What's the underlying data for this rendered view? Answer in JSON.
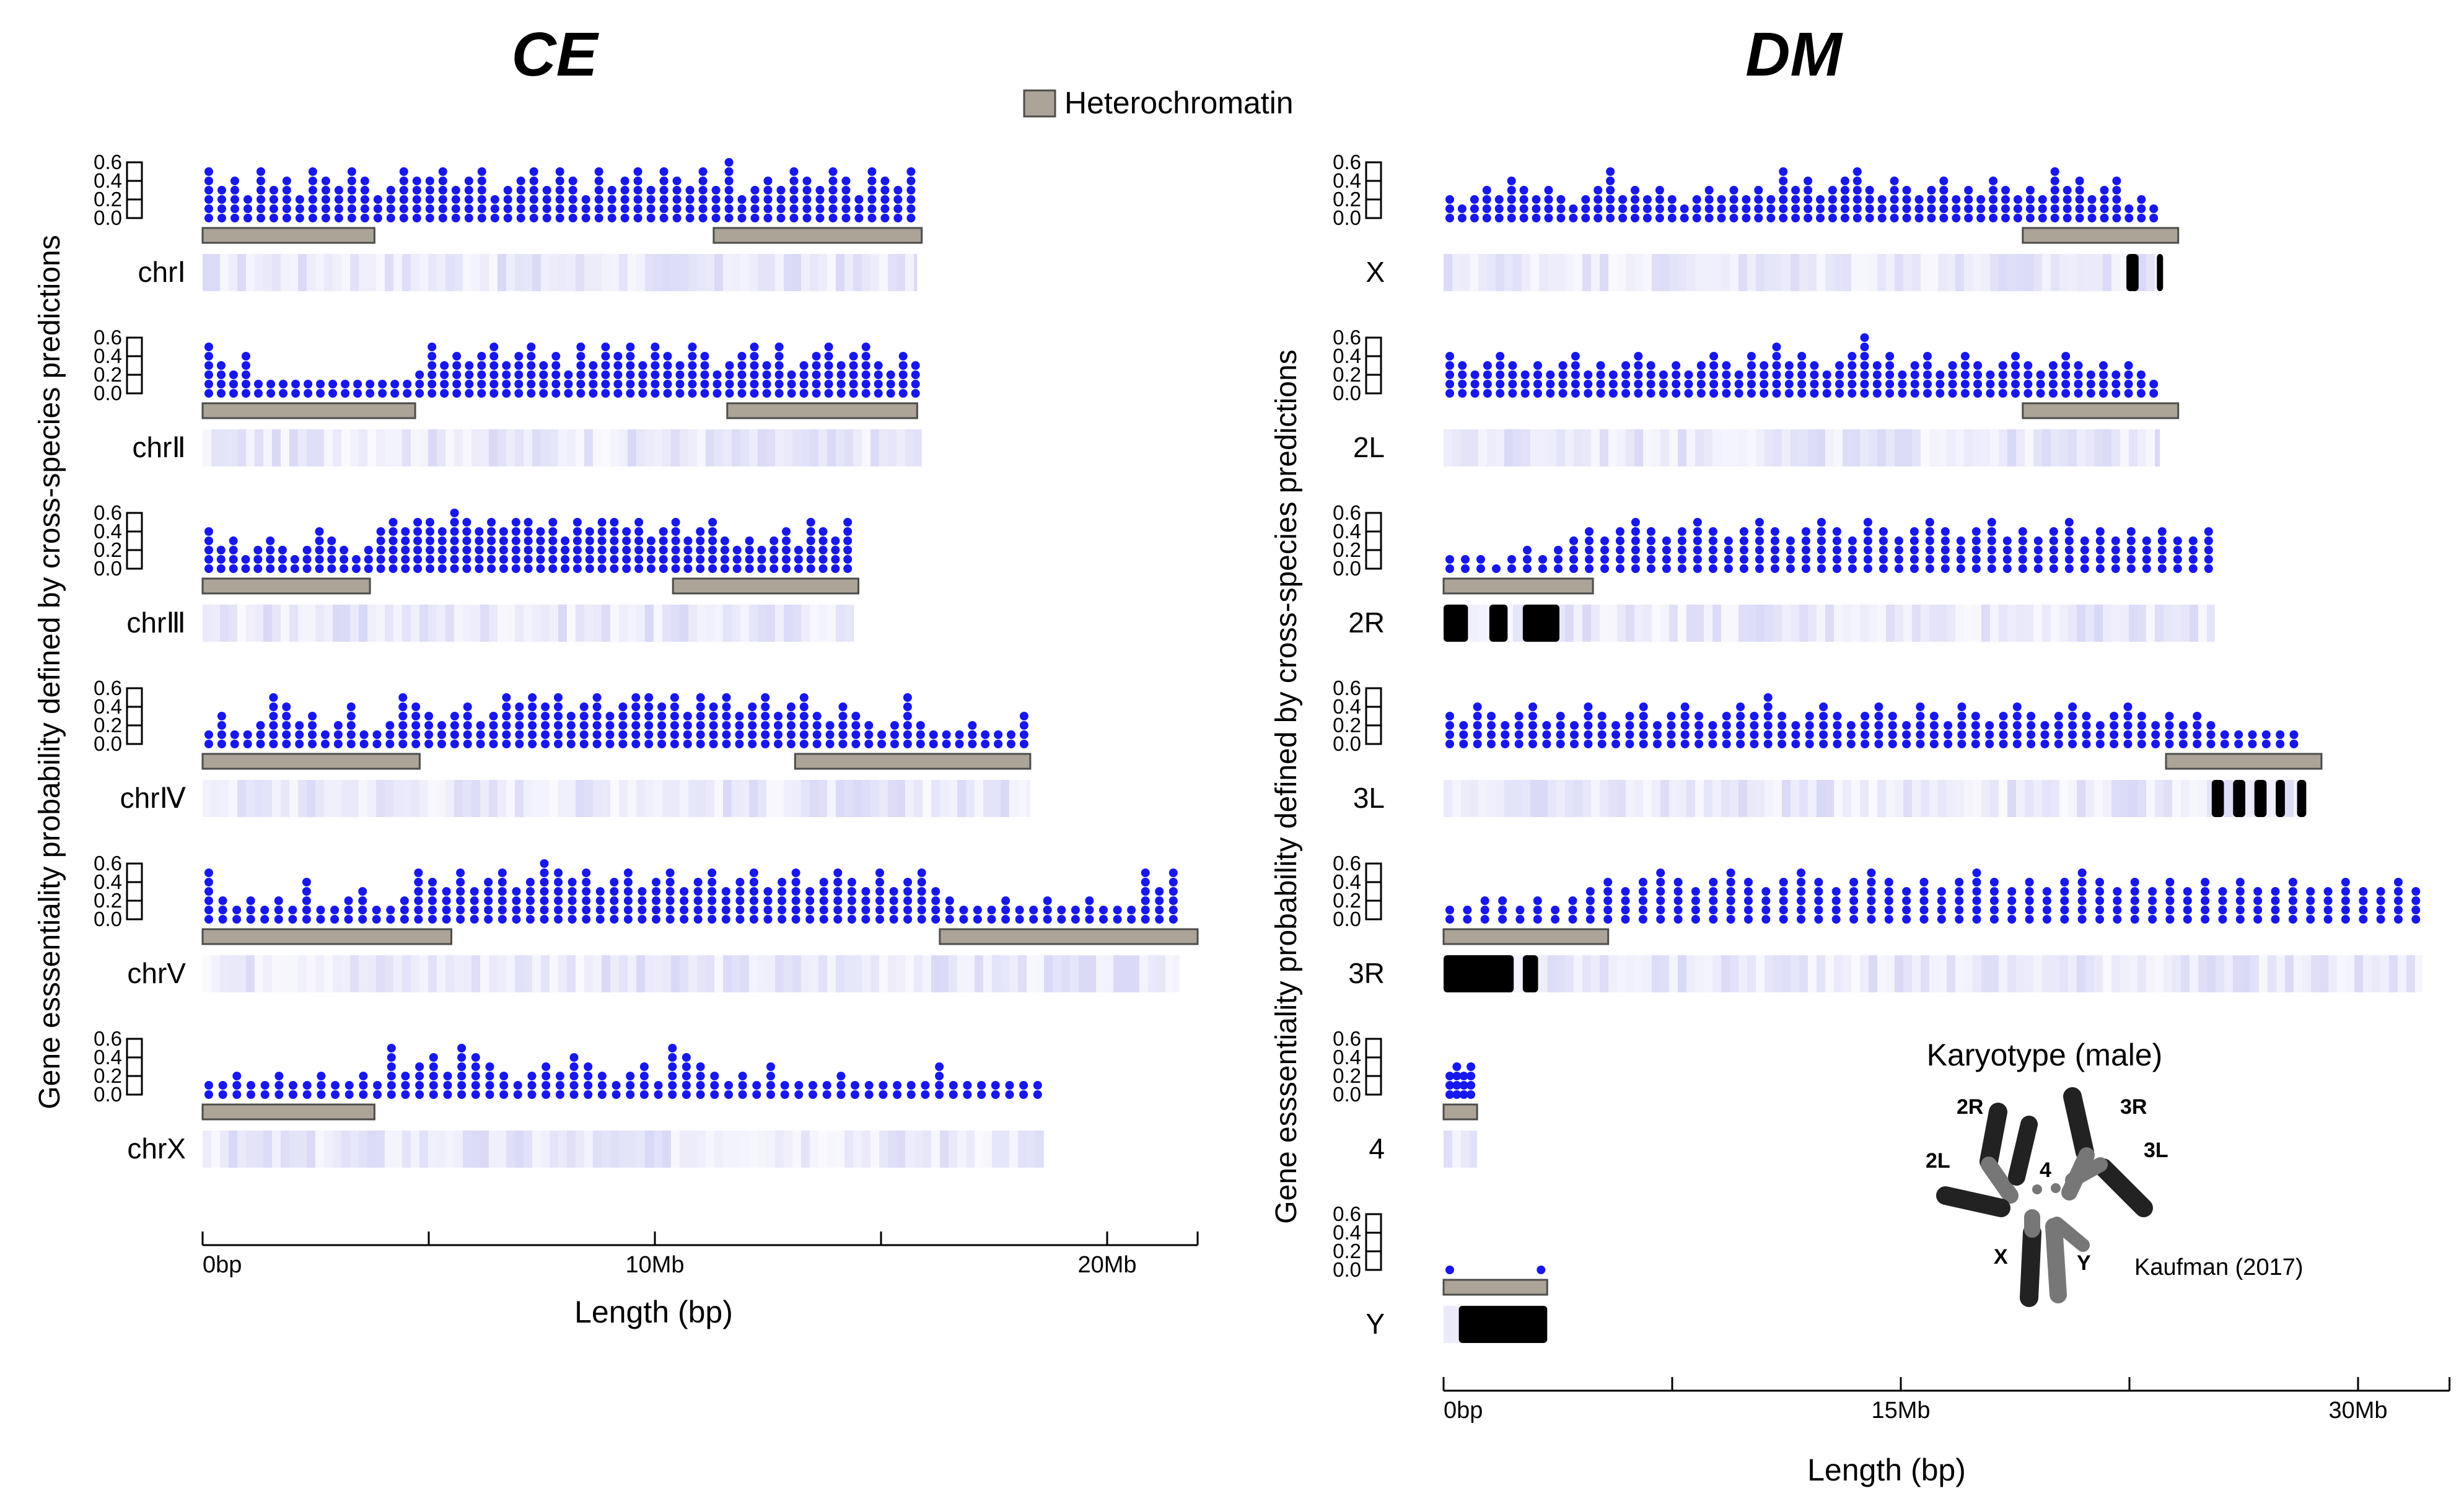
{
  "figure": {
    "panel_titles": {
      "left": "CE",
      "right": "DM"
    },
    "legend_label": "Heterochromatin",
    "colors": {
      "point": "#1717ee",
      "hetero_fill": "#aca497",
      "hetero_stroke": "#4d4d4d",
      "density": "#6a6ae0",
      "band": "#000000",
      "chrom": "#222222"
    },
    "karyotype": {
      "title": "Karyotype (male)",
      "labels": [
        "2R",
        "3R",
        "2L",
        "3L",
        "4",
        "X",
        "Y"
      ],
      "credit": "Kaufman (2017)"
    }
  },
  "chart_data": [
    {
      "type": "scatter",
      "title": "CE",
      "ylabel": "Gene esssentiality probability defined by cross-species predictions",
      "xlabel": "Length (bp)",
      "x_unit": "Mb",
      "xlim": [
        0,
        22
      ],
      "x_ticks": [
        0,
        10,
        20
      ],
      "x_tick_labels": [
        "0bp",
        "10Mb",
        "20Mb"
      ],
      "x_minor_ticks": [
        5,
        15
      ],
      "ylim": [
        0,
        0.6
      ],
      "y_ticks": [
        0.0,
        0.2,
        0.4,
        0.6
      ],
      "y_tick_labels": [
        "0.0",
        "0.2",
        "0.4",
        "0.6"
      ],
      "rows": [
        {
          "label": "chrⅠ",
          "length": 15.8,
          "heterochromatin": [
            [
              0,
              3.8
            ],
            [
              11.3,
              15.9
            ]
          ],
          "bands": [],
          "peaks": [
            0.5,
            0.3,
            0.4,
            0.2,
            0.5,
            0.3,
            0.4,
            0.2,
            0.5,
            0.4,
            0.3,
            0.5,
            0.4,
            0.2,
            0.3,
            0.5,
            0.4,
            0.4,
            0.5,
            0.3,
            0.4,
            0.5,
            0.2,
            0.3,
            0.4,
            0.5,
            0.3,
            0.5,
            0.4,
            0.2,
            0.5,
            0.3,
            0.4,
            0.5,
            0.3,
            0.5,
            0.4,
            0.3,
            0.5,
            0.3,
            0.6,
            0.2,
            0.3,
            0.4,
            0.3,
            0.5,
            0.4,
            0.3,
            0.5,
            0.4,
            0.2,
            0.5,
            0.4,
            0.3,
            0.5
          ]
        },
        {
          "label": "chrⅡ",
          "length": 15.9,
          "heterochromatin": [
            [
              0,
              4.7
            ],
            [
              11.6,
              15.8
            ]
          ],
          "bands": [],
          "peaks": [
            0.5,
            0.3,
            0.2,
            0.4,
            0.1,
            0.05,
            0.05,
            0.05,
            0.05,
            0.05,
            0.1,
            0.05,
            0.05,
            0.05,
            0.05,
            0.05,
            0.1,
            0.2,
            0.5,
            0.3,
            0.4,
            0.3,
            0.4,
            0.5,
            0.3,
            0.4,
            0.5,
            0.3,
            0.4,
            0.2,
            0.5,
            0.3,
            0.5,
            0.4,
            0.5,
            0.3,
            0.5,
            0.4,
            0.3,
            0.5,
            0.4,
            0.2,
            0.3,
            0.4,
            0.5,
            0.3,
            0.5,
            0.2,
            0.3,
            0.4,
            0.5,
            0.3,
            0.4,
            0.5,
            0.3,
            0.2,
            0.4,
            0.3
          ]
        },
        {
          "label": "chrⅢ",
          "length": 14.4,
          "heterochromatin": [
            [
              0,
              3.7
            ],
            [
              10.4,
              14.5
            ]
          ],
          "bands": [],
          "peaks": [
            0.4,
            0.2,
            0.3,
            0.1,
            0.2,
            0.3,
            0.2,
            0.1,
            0.2,
            0.4,
            0.3,
            0.2,
            0.1,
            0.2,
            0.4,
            0.5,
            0.4,
            0.5,
            0.5,
            0.4,
            0.6,
            0.5,
            0.4,
            0.5,
            0.4,
            0.5,
            0.5,
            0.4,
            0.5,
            0.3,
            0.5,
            0.4,
            0.5,
            0.5,
            0.4,
            0.5,
            0.3,
            0.4,
            0.5,
            0.3,
            0.4,
            0.5,
            0.3,
            0.2,
            0.3,
            0.2,
            0.3,
            0.4,
            0.2,
            0.5,
            0.4,
            0.3,
            0.5
          ]
        },
        {
          "label": "chrⅣ",
          "length": 18.3,
          "heterochromatin": [
            [
              0,
              4.8
            ],
            [
              13.1,
              18.3
            ]
          ],
          "bands": [],
          "peaks": [
            0.1,
            0.3,
            0.1,
            0.1,
            0.2,
            0.5,
            0.4,
            0.2,
            0.3,
            0.1,
            0.2,
            0.4,
            0.1,
            0.1,
            0.2,
            0.5,
            0.4,
            0.3,
            0.2,
            0.3,
            0.4,
            0.2,
            0.3,
            0.5,
            0.4,
            0.5,
            0.4,
            0.5,
            0.3,
            0.4,
            0.5,
            0.3,
            0.4,
            0.5,
            0.5,
            0.4,
            0.5,
            0.3,
            0.5,
            0.4,
            0.5,
            0.3,
            0.4,
            0.5,
            0.3,
            0.4,
            0.5,
            0.3,
            0.2,
            0.4,
            0.3,
            0.2,
            0.1,
            0.2,
            0.5,
            0.2,
            0.1,
            0.1,
            0.1,
            0.2,
            0.1,
            0.1,
            0.1,
            0.3
          ]
        },
        {
          "label": "chrV",
          "length": 21.6,
          "heterochromatin": [
            [
              0,
              5.5
            ],
            [
              16.3,
              22.0
            ]
          ],
          "bands": [],
          "peaks": [
            0.5,
            0.2,
            0.1,
            0.2,
            0.1,
            0.2,
            0.1,
            0.4,
            0.1,
            0.1,
            0.2,
            0.3,
            0.1,
            0.1,
            0.2,
            0.5,
            0.4,
            0.3,
            0.5,
            0.3,
            0.4,
            0.5,
            0.3,
            0.4,
            0.6,
            0.5,
            0.4,
            0.5,
            0.3,
            0.4,
            0.5,
            0.3,
            0.4,
            0.5,
            0.3,
            0.4,
            0.5,
            0.3,
            0.4,
            0.5,
            0.3,
            0.4,
            0.5,
            0.3,
            0.4,
            0.5,
            0.4,
            0.3,
            0.5,
            0.3,
            0.4,
            0.5,
            0.3,
            0.2,
            0.1,
            0.1,
            0.1,
            0.2,
            0.1,
            0.1,
            0.2,
            0.1,
            0.1,
            0.2,
            0.1,
            0.1,
            0.1,
            0.5,
            0.3,
            0.5
          ]
        },
        {
          "label": "chrX",
          "length": 18.6,
          "heterochromatin": [
            [
              0,
              3.8
            ]
          ],
          "bands": [],
          "peaks": [
            0.1,
            0.1,
            0.2,
            0.1,
            0.1,
            0.2,
            0.1,
            0.1,
            0.2,
            0.1,
            0.1,
            0.2,
            0.1,
            0.5,
            0.2,
            0.3,
            0.4,
            0.2,
            0.5,
            0.4,
            0.3,
            0.2,
            0.1,
            0.2,
            0.3,
            0.2,
            0.4,
            0.3,
            0.2,
            0.1,
            0.2,
            0.3,
            0.1,
            0.5,
            0.4,
            0.3,
            0.2,
            0.1,
            0.2,
            0.1,
            0.3,
            0.1,
            0.1,
            0.1,
            0.1,
            0.2,
            0.1,
            0.1,
            0.1,
            0.1,
            0.1,
            0.1,
            0.3,
            0.1,
            0.1,
            0.1,
            0.1,
            0.1,
            0.1,
            0.1
          ]
        }
      ]
    },
    {
      "type": "scatter",
      "title": "DM",
      "ylabel": "Gene esssentiality probability defined by cross-species predictions",
      "xlabel": "Length (bp)",
      "x_unit": "Mb",
      "xlim": [
        0,
        33
      ],
      "x_ticks": [
        0,
        15,
        30
      ],
      "x_tick_labels": [
        "0bp",
        "15Mb",
        "30Mb"
      ],
      "x_minor_ticks": [
        7.5,
        22.5
      ],
      "ylim": [
        0,
        0.6
      ],
      "y_ticks": [
        0.0,
        0.2,
        0.4,
        0.6
      ],
      "y_tick_labels": [
        "0.0",
        "0.2",
        "0.4",
        "0.6"
      ],
      "rows": [
        {
          "label": "X",
          "length": 23.5,
          "heterochromatin": [
            [
              19.0,
              24.1
            ]
          ],
          "bands": [
            [
              22.4,
              22.8
            ],
            [
              23.4,
              23.5
            ]
          ],
          "peaks": [
            0.2,
            0.1,
            0.2,
            0.3,
            0.2,
            0.4,
            0.3,
            0.2,
            0.3,
            0.2,
            0.1,
            0.2,
            0.3,
            0.5,
            0.2,
            0.3,
            0.2,
            0.3,
            0.2,
            0.1,
            0.2,
            0.3,
            0.2,
            0.3,
            0.2,
            0.3,
            0.2,
            0.5,
            0.3,
            0.4,
            0.2,
            0.3,
            0.4,
            0.5,
            0.3,
            0.2,
            0.4,
            0.3,
            0.2,
            0.3,
            0.4,
            0.2,
            0.3,
            0.2,
            0.4,
            0.3,
            0.2,
            0.3,
            0.2,
            0.5,
            0.3,
            0.4,
            0.2,
            0.3,
            0.4,
            0.1,
            0.2,
            0.1
          ]
        },
        {
          "label": "2L",
          "length": 23.5,
          "heterochromatin": [
            [
              19.0,
              24.1
            ]
          ],
          "bands": [],
          "peaks": [
            0.4,
            0.3,
            0.2,
            0.3,
            0.4,
            0.3,
            0.2,
            0.3,
            0.2,
            0.3,
            0.4,
            0.2,
            0.3,
            0.2,
            0.3,
            0.4,
            0.3,
            0.2,
            0.3,
            0.2,
            0.3,
            0.4,
            0.3,
            0.2,
            0.4,
            0.3,
            0.5,
            0.3,
            0.4,
            0.3,
            0.2,
            0.3,
            0.4,
            0.6,
            0.3,
            0.4,
            0.2,
            0.3,
            0.4,
            0.2,
            0.3,
            0.4,
            0.3,
            0.2,
            0.3,
            0.4,
            0.3,
            0.2,
            0.3,
            0.4,
            0.3,
            0.2,
            0.3,
            0.2,
            0.3,
            0.2,
            0.1
          ]
        },
        {
          "label": "2R",
          "length": 25.3,
          "heterochromatin": [
            [
              0,
              4.9
            ]
          ],
          "bands": [
            [
              0,
              0.8
            ],
            [
              1.5,
              2.1
            ],
            [
              2.6,
              3.8
            ]
          ],
          "peaks": [
            0.1,
            0.1,
            0.1,
            0.0,
            0.1,
            0.2,
            0.1,
            0.2,
            0.3,
            0.4,
            0.3,
            0.4,
            0.5,
            0.4,
            0.3,
            0.4,
            0.5,
            0.4,
            0.3,
            0.4,
            0.5,
            0.4,
            0.3,
            0.4,
            0.5,
            0.4,
            0.3,
            0.5,
            0.4,
            0.3,
            0.4,
            0.5,
            0.4,
            0.3,
            0.4,
            0.5,
            0.3,
            0.4,
            0.3,
            0.4,
            0.5,
            0.3,
            0.4,
            0.3,
            0.4,
            0.3,
            0.4,
            0.3,
            0.3,
            0.4
          ]
        },
        {
          "label": "3L",
          "length": 28.1,
          "heterochromatin": [
            [
              23.7,
              28.8
            ]
          ],
          "bands": [
            [
              25.2,
              25.6
            ],
            [
              25.9,
              26.3
            ],
            [
              26.6,
              27.0
            ],
            [
              27.3,
              27.6
            ],
            [
              28.0,
              28.3
            ]
          ],
          "peaks": [
            0.3,
            0.2,
            0.4,
            0.3,
            0.2,
            0.3,
            0.4,
            0.2,
            0.3,
            0.2,
            0.4,
            0.3,
            0.2,
            0.3,
            0.4,
            0.2,
            0.3,
            0.4,
            0.3,
            0.2,
            0.3,
            0.4,
            0.3,
            0.5,
            0.3,
            0.2,
            0.3,
            0.4,
            0.3,
            0.2,
            0.3,
            0.4,
            0.3,
            0.2,
            0.4,
            0.3,
            0.2,
            0.4,
            0.3,
            0.2,
            0.3,
            0.4,
            0.3,
            0.2,
            0.3,
            0.4,
            0.3,
            0.2,
            0.3,
            0.4,
            0.3,
            0.2,
            0.3,
            0.2,
            0.3,
            0.2,
            0.1,
            0.1,
            0.1,
            0.1,
            0.1,
            0.1
          ]
        },
        {
          "label": "3R",
          "length": 32.1,
          "heterochromatin": [
            [
              0,
              5.4
            ]
          ],
          "bands": [
            [
              0,
              2.3
            ],
            [
              2.6,
              3.1
            ]
          ],
          "peaks": [
            0.1,
            0.1,
            0.2,
            0.2,
            0.1,
            0.2,
            0.1,
            0.2,
            0.3,
            0.4,
            0.3,
            0.4,
            0.5,
            0.4,
            0.3,
            0.4,
            0.5,
            0.4,
            0.3,
            0.4,
            0.5,
            0.4,
            0.3,
            0.4,
            0.5,
            0.4,
            0.3,
            0.4,
            0.3,
            0.4,
            0.5,
            0.4,
            0.3,
            0.4,
            0.3,
            0.4,
            0.5,
            0.4,
            0.3,
            0.4,
            0.3,
            0.4,
            0.3,
            0.4,
            0.3,
            0.4,
            0.3,
            0.3,
            0.4,
            0.3,
            0.3,
            0.4,
            0.3,
            0.3,
            0.4,
            0.3
          ]
        },
        {
          "label": "4",
          "length": 1.1,
          "heterochromatin": [
            [
              0,
              1.1
            ]
          ],
          "bands": [],
          "peaks": [
            0.2,
            0.3,
            0.2,
            0.3
          ]
        },
        {
          "label": "Y",
          "length": 3.4,
          "heterochromatin": [
            [
              0,
              3.4
            ]
          ],
          "bands": [
            [
              0.5,
              3.4
            ]
          ],
          "peaks": [
            0.0,
            0.0
          ]
        }
      ]
    }
  ]
}
